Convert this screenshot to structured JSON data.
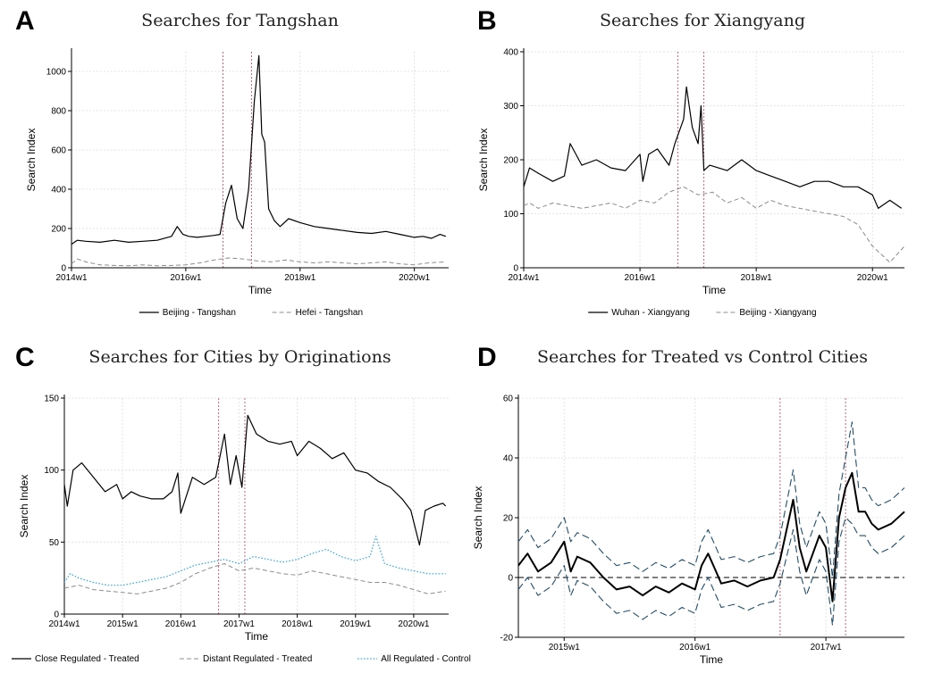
{
  "chart_data": [
    {
      "letter": "A",
      "type": "line",
      "title": "Searches for Tangshan",
      "xlabel": "Time",
      "ylabel": "Search Index",
      "xlim": [
        2014.0,
        2020.6
      ],
      "ylim": [
        0,
        1100
      ],
      "yticks": [
        0,
        200,
        400,
        600,
        800,
        1000
      ],
      "xticks": [
        {
          "x": 2014.0,
          "label": "2014w1"
        },
        {
          "x": 2016.0,
          "label": "2016w1"
        },
        {
          "x": 2018.0,
          "label": "2018w1"
        },
        {
          "x": 2020.0,
          "label": "2020w1"
        }
      ],
      "vlines": [
        2016.65,
        2017.15
      ],
      "series": [
        {
          "name": "Beijing - Tangshan",
          "color": "#000000",
          "dash": "",
          "width": 1.2,
          "x": [
            2014.0,
            2014.1,
            2014.25,
            2014.5,
            2014.75,
            2015.0,
            2015.25,
            2015.5,
            2015.75,
            2015.85,
            2015.95,
            2016.05,
            2016.2,
            2016.35,
            2016.5,
            2016.6,
            2016.7,
            2016.8,
            2016.9,
            2017.0,
            2017.1,
            2017.2,
            2017.28,
            2017.33,
            2017.38,
            2017.45,
            2017.55,
            2017.65,
            2017.8,
            2018.0,
            2018.25,
            2018.5,
            2018.75,
            2019.0,
            2019.25,
            2019.5,
            2019.75,
            2020.0,
            2020.15,
            2020.3,
            2020.45,
            2020.55
          ],
          "y": [
            120,
            140,
            135,
            130,
            140,
            130,
            135,
            140,
            160,
            210,
            170,
            160,
            155,
            160,
            165,
            170,
            330,
            420,
            250,
            200,
            400,
            850,
            1080,
            680,
            640,
            300,
            240,
            210,
            250,
            230,
            210,
            200,
            190,
            180,
            175,
            185,
            170,
            155,
            160,
            150,
            170,
            160
          ]
        },
        {
          "name": "Hefei - Tangshan",
          "color": "#8c8c8c",
          "dash": "5,3",
          "width": 1,
          "x": [
            2014.0,
            2014.1,
            2014.25,
            2014.5,
            2014.75,
            2015.0,
            2015.25,
            2015.5,
            2015.75,
            2016.0,
            2016.25,
            2016.5,
            2016.75,
            2017.0,
            2017.25,
            2017.5,
            2017.75,
            2018.0,
            2018.25,
            2018.5,
            2018.75,
            2019.0,
            2019.25,
            2019.5,
            2019.75,
            2020.0,
            2020.25,
            2020.55
          ],
          "y": [
            20,
            45,
            30,
            15,
            12,
            10,
            15,
            10,
            12,
            15,
            25,
            40,
            50,
            45,
            35,
            30,
            40,
            30,
            25,
            30,
            25,
            20,
            25,
            30,
            20,
            15,
            25,
            30
          ]
        }
      ]
    },
    {
      "letter": "B",
      "type": "line",
      "title": "Searches for Xiangyang",
      "xlabel": "Time",
      "ylabel": "Search Index",
      "xlim": [
        2014.0,
        2020.55
      ],
      "ylim": [
        0,
        400
      ],
      "yticks": [
        0,
        100,
        200,
        300,
        400
      ],
      "xticks": [
        {
          "x": 2014.0,
          "label": "2014w1"
        },
        {
          "x": 2016.0,
          "label": "2016w1"
        },
        {
          "x": 2018.0,
          "label": "2018w1"
        },
        {
          "x": 2020.0,
          "label": "2020w1"
        }
      ],
      "vlines": [
        2016.65,
        2017.1
      ],
      "series": [
        {
          "name": "Wuhan - Xiangyang",
          "color": "#000000",
          "dash": "",
          "width": 1.2,
          "x": [
            2014.0,
            2014.1,
            2014.25,
            2014.5,
            2014.7,
            2014.8,
            2015.0,
            2015.25,
            2015.5,
            2015.75,
            2016.0,
            2016.05,
            2016.15,
            2016.3,
            2016.5,
            2016.6,
            2016.75,
            2016.8,
            2016.9,
            2017.0,
            2017.05,
            2017.1,
            2017.2,
            2017.5,
            2017.75,
            2018.0,
            2018.25,
            2018.5,
            2018.75,
            2019.0,
            2019.25,
            2019.5,
            2019.75,
            2020.0,
            2020.1,
            2020.3,
            2020.5
          ],
          "y": [
            150,
            185,
            175,
            160,
            170,
            230,
            190,
            200,
            185,
            180,
            210,
            160,
            210,
            220,
            190,
            230,
            275,
            335,
            260,
            230,
            300,
            180,
            190,
            180,
            200,
            180,
            170,
            160,
            150,
            160,
            160,
            150,
            150,
            135,
            110,
            125,
            110
          ]
        },
        {
          "name": "Beijing - Xiangyang",
          "color": "#8c8c8c",
          "dash": "5,3",
          "width": 1,
          "x": [
            2014.0,
            2014.1,
            2014.25,
            2014.5,
            2014.75,
            2015.0,
            2015.25,
            2015.5,
            2015.75,
            2016.0,
            2016.25,
            2016.5,
            2016.75,
            2017.0,
            2017.25,
            2017.5,
            2017.75,
            2018.0,
            2018.25,
            2018.5,
            2018.75,
            2019.0,
            2019.25,
            2019.5,
            2019.75,
            2020.0,
            2020.15,
            2020.3,
            2020.55
          ],
          "y": [
            115,
            120,
            110,
            120,
            115,
            110,
            115,
            120,
            110,
            125,
            120,
            140,
            150,
            135,
            140,
            120,
            130,
            110,
            125,
            115,
            110,
            105,
            100,
            95,
            80,
            40,
            25,
            10,
            40
          ]
        }
      ]
    },
    {
      "letter": "C",
      "type": "line",
      "title": "Searches for Cities by Originations",
      "xlabel": "Time",
      "ylabel": "Search Index",
      "xlim": [
        2014.0,
        2020.6
      ],
      "ylim": [
        0,
        150
      ],
      "yticks": [
        0,
        50,
        100,
        150
      ],
      "xticks": [
        {
          "x": 2014.0,
          "label": "2014w1"
        },
        {
          "x": 2015.0,
          "label": "2015w1"
        },
        {
          "x": 2016.0,
          "label": "2016w1"
        },
        {
          "x": 2017.0,
          "label": "2017w1"
        },
        {
          "x": 2018.0,
          "label": "2018w1"
        },
        {
          "x": 2019.0,
          "label": "2019w1"
        },
        {
          "x": 2020.0,
          "label": "2020w1"
        }
      ],
      "vlines": [
        2016.65,
        2017.1
      ],
      "series": [
        {
          "name": "Close Regulated - Treated",
          "color": "#000000",
          "dash": "",
          "width": 1.2,
          "x": [
            2014.0,
            2014.05,
            2014.15,
            2014.3,
            2014.5,
            2014.7,
            2014.9,
            2015.0,
            2015.15,
            2015.3,
            2015.5,
            2015.7,
            2015.85,
            2015.95,
            2016.0,
            2016.2,
            2016.4,
            2016.6,
            2016.75,
            2016.85,
            2016.95,
            2017.05,
            2017.15,
            2017.3,
            2017.5,
            2017.7,
            2017.9,
            2018.0,
            2018.2,
            2018.4,
            2018.6,
            2018.8,
            2019.0,
            2019.2,
            2019.4,
            2019.6,
            2019.8,
            2019.95,
            2020.1,
            2020.2,
            2020.35,
            2020.5,
            2020.55
          ],
          "y": [
            90,
            75,
            100,
            105,
            95,
            85,
            90,
            80,
            85,
            82,
            80,
            80,
            85,
            98,
            70,
            95,
            90,
            95,
            125,
            90,
            110,
            88,
            138,
            125,
            120,
            118,
            120,
            110,
            120,
            115,
            108,
            112,
            100,
            98,
            92,
            88,
            80,
            72,
            48,
            72,
            75,
            77,
            75
          ]
        },
        {
          "name": "Distant Regulated - Treated",
          "color": "#8c8c8c",
          "dash": "5,3",
          "width": 1,
          "x": [
            2014.0,
            2014.25,
            2014.5,
            2014.75,
            2015.0,
            2015.25,
            2015.5,
            2015.75,
            2016.0,
            2016.25,
            2016.5,
            2016.75,
            2017.0,
            2017.25,
            2017.5,
            2017.75,
            2018.0,
            2018.25,
            2018.5,
            2018.75,
            2019.0,
            2019.25,
            2019.5,
            2019.75,
            2020.0,
            2020.25,
            2020.55
          ],
          "y": [
            18,
            20,
            17,
            16,
            15,
            14,
            16,
            18,
            22,
            28,
            32,
            35,
            30,
            32,
            30,
            28,
            27,
            30,
            28,
            26,
            24,
            22,
            22,
            20,
            17,
            14,
            16
          ]
        },
        {
          "name": "All Regulated - Control",
          "color": "#29a3e6",
          "dash": "1.5,2",
          "width": 1.2,
          "x": [
            2014.0,
            2014.1,
            2014.25,
            2014.5,
            2014.75,
            2015.0,
            2015.25,
            2015.5,
            2015.75,
            2016.0,
            2016.25,
            2016.5,
            2016.75,
            2017.0,
            2017.25,
            2017.5,
            2017.75,
            2018.0,
            2018.25,
            2018.5,
            2018.75,
            2019.0,
            2019.25,
            2019.35,
            2019.5,
            2019.75,
            2020.0,
            2020.25,
            2020.55
          ],
          "y": [
            22,
            28,
            25,
            22,
            20,
            20,
            22,
            24,
            26,
            30,
            34,
            36,
            38,
            35,
            40,
            38,
            36,
            38,
            42,
            45,
            40,
            37,
            40,
            54,
            35,
            32,
            30,
            28,
            28
          ]
        }
      ]
    },
    {
      "letter": "D",
      "type": "line",
      "title": "Searches for Treated vs Control Cities",
      "xlabel": "Time",
      "ylabel": "Search Index",
      "xlim": [
        2014.65,
        2017.6
      ],
      "ylim": [
        -20,
        60
      ],
      "yticks": [
        -20,
        0,
        20,
        40,
        60
      ],
      "xticks": [
        {
          "x": 2015.0,
          "label": "2015w1"
        },
        {
          "x": 2016.0,
          "label": "2016w1"
        },
        {
          "x": 2017.0,
          "label": "2017w1"
        }
      ],
      "vlines": [
        2016.65,
        2017.15
      ],
      "hline": 0,
      "series": [
        {
          "name": "",
          "color": "#000000",
          "dash": "",
          "width": 2,
          "x": [
            2014.65,
            2014.72,
            2014.8,
            2014.9,
            2015.0,
            2015.05,
            2015.1,
            2015.2,
            2015.3,
            2015.4,
            2015.5,
            2015.6,
            2015.7,
            2015.8,
            2015.9,
            2016.0,
            2016.05,
            2016.1,
            2016.15,
            2016.2,
            2016.3,
            2016.4,
            2016.5,
            2016.6,
            2016.65,
            2016.75,
            2016.8,
            2016.85,
            2016.9,
            2016.95,
            2017.0,
            2017.05,
            2017.1,
            2017.15,
            2017.2,
            2017.25,
            2017.3,
            2017.35,
            2017.4,
            2017.5,
            2017.6
          ],
          "y": [
            4,
            8,
            2,
            5,
            12,
            2,
            7,
            5,
            0,
            -4,
            -3,
            -6,
            -3,
            -5,
            -2,
            -4,
            4,
            8,
            3,
            -2,
            -1,
            -3,
            -1,
            0,
            6,
            26,
            10,
            2,
            8,
            14,
            10,
            -8,
            20,
            30,
            35,
            22,
            22,
            18,
            16,
            18,
            22
          ]
        },
        {
          "name": "",
          "color": "#1f4e6b",
          "dash": "8,4",
          "width": 1.1,
          "x": [
            2014.65,
            2014.72,
            2014.8,
            2014.9,
            2015.0,
            2015.05,
            2015.1,
            2015.2,
            2015.3,
            2015.4,
            2015.5,
            2015.6,
            2015.7,
            2015.8,
            2015.9,
            2016.0,
            2016.05,
            2016.1,
            2016.15,
            2016.2,
            2016.3,
            2016.4,
            2016.5,
            2016.6,
            2016.65,
            2016.75,
            2016.8,
            2016.85,
            2016.9,
            2016.95,
            2017.0,
            2017.05,
            2017.1,
            2017.15,
            2017.2,
            2017.25,
            2017.3,
            2017.35,
            2017.4,
            2017.5,
            2017.6
          ],
          "y": [
            12,
            16,
            10,
            13,
            20,
            12,
            15,
            13,
            8,
            4,
            5,
            2,
            5,
            3,
            6,
            4,
            12,
            16,
            11,
            6,
            7,
            5,
            7,
            8,
            14,
            36,
            18,
            10,
            16,
            22,
            18,
            0,
            28,
            40,
            52,
            30,
            30,
            26,
            24,
            26,
            30
          ]
        },
        {
          "name": "",
          "color": "#1f4e6b",
          "dash": "8,4",
          "width": 1.1,
          "x": [
            2014.65,
            2014.72,
            2014.8,
            2014.9,
            2015.0,
            2015.05,
            2015.1,
            2015.2,
            2015.3,
            2015.4,
            2015.5,
            2015.6,
            2015.7,
            2015.8,
            2015.9,
            2016.0,
            2016.05,
            2016.1,
            2016.15,
            2016.2,
            2016.3,
            2016.4,
            2016.5,
            2016.6,
            2016.65,
            2016.75,
            2016.8,
            2016.85,
            2016.9,
            2016.95,
            2017.0,
            2017.05,
            2017.1,
            2017.15,
            2017.2,
            2017.25,
            2017.3,
            2017.35,
            2017.4,
            2017.5,
            2017.6
          ],
          "y": [
            -4,
            0,
            -6,
            -3,
            4,
            -6,
            -1,
            -3,
            -8,
            -12,
            -11,
            -14,
            -11,
            -13,
            -10,
            -12,
            -4,
            0,
            -5,
            -10,
            -9,
            -11,
            -9,
            -8,
            -2,
            16,
            2,
            -6,
            0,
            6,
            2,
            -16,
            12,
            20,
            18,
            14,
            14,
            10,
            8,
            10,
            14
          ]
        }
      ]
    }
  ]
}
